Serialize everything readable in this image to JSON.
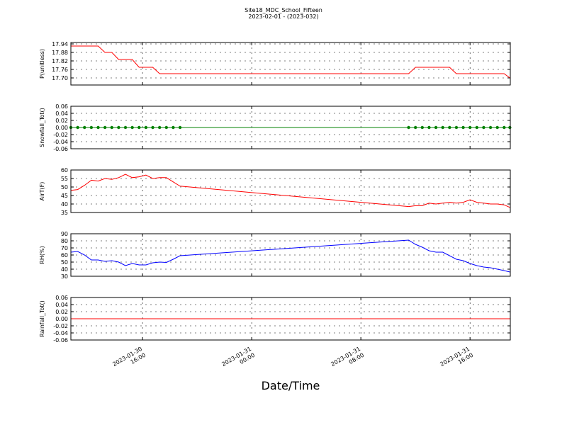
{
  "title": "Site18_MDC_School_Fifteen",
  "subtitle": "2023-02-01 - (2023-032)",
  "x_axis": {
    "label": "Date/Time",
    "xlim": [
      "2023-01-30 10:45",
      "2023-01-31 18:57"
    ],
    "xticks": [
      {
        "value": "2023-01-30 16:00",
        "label": "2023-01-30\n16:00"
      },
      {
        "value": "2023-01-31 00:00",
        "label": "2023-01-31\n00:00"
      },
      {
        "value": "2023-01-31 08:00",
        "label": "2023-01-31\n08:00"
      },
      {
        "value": "2023-01-31 16:00",
        "label": "2023-01-31\n16:00"
      }
    ],
    "x": [
      "2023-01-30 10:45",
      "2023-01-30 11:15",
      "2023-01-30 11:45",
      "2023-01-30 12:15",
      "2023-01-30 12:45",
      "2023-01-30 13:15",
      "2023-01-30 13:45",
      "2023-01-30 14:15",
      "2023-01-30 14:45",
      "2023-01-30 15:15",
      "2023-01-30 15:45",
      "2023-01-30 16:15",
      "2023-01-30 16:45",
      "2023-01-30 17:15",
      "2023-01-30 17:45",
      "2023-01-30 18:15",
      "2023-01-30 18:45",
      "2023-01-31 11:30",
      "2023-01-31 12:00",
      "2023-01-31 12:30",
      "2023-01-31 13:00",
      "2023-01-31 13:30",
      "2023-01-31 14:00",
      "2023-01-31 14:30",
      "2023-01-31 15:00",
      "2023-01-31 15:30",
      "2023-01-31 16:00",
      "2023-01-31 16:30",
      "2023-01-31 17:00",
      "2023-01-31 17:30",
      "2023-01-31 18:00",
      "2023-01-31 18:30",
      "2023-01-31 18:55"
    ]
  },
  "chart_data": [
    {
      "type": "line",
      "ylabel": "P(unitless)",
      "color": "#ff0000",
      "grid": true,
      "marker": false,
      "ylim": [
        17.65,
        17.95
      ],
      "yticks": [
        {
          "value": 17.7,
          "label": "17.70"
        },
        17.76,
        17.82,
        17.88,
        17.94
      ],
      "values": [
        17.925,
        17.925,
        17.925,
        17.925,
        17.925,
        17.88,
        17.88,
        17.83,
        17.83,
        17.83,
        17.775,
        17.775,
        17.775,
        17.73,
        17.73,
        17.73,
        17.73,
        17.73,
        17.775,
        17.775,
        17.775,
        17.775,
        17.775,
        17.775,
        17.73,
        17.73,
        17.73,
        17.73,
        17.73,
        17.73,
        17.73,
        17.73,
        17.7
      ]
    },
    {
      "type": "line",
      "ylabel": "Snowfall_Tot()",
      "color": "#008000",
      "grid": true,
      "marker": true,
      "ylim": [
        -0.06,
        0.06
      ],
      "yticks": [
        -0.06,
        -0.04,
        -0.02,
        {
          "value": 0,
          "label": "0.00"
        },
        0.02,
        0.04,
        0.06
      ],
      "values": [
        0,
        0,
        0,
        0,
        0,
        0,
        0,
        0,
        0,
        0,
        0,
        0,
        0,
        0,
        0,
        0,
        0,
        0,
        0,
        0,
        0,
        0,
        0,
        0,
        0,
        0,
        0,
        0,
        0,
        0,
        0,
        0,
        0
      ]
    },
    {
      "type": "line",
      "ylabel": "AirT(F)",
      "color": "#ff0000",
      "grid": true,
      "marker": false,
      "ylim": [
        35,
        60
      ],
      "yticks": [
        35,
        40,
        45,
        50,
        55,
        60
      ],
      "values": [
        48,
        48.5,
        51,
        54,
        53.5,
        55,
        54.5,
        55.5,
        57.5,
        55.5,
        56,
        57,
        55,
        55.5,
        55.5,
        53,
        50.5,
        38.5,
        39,
        39,
        40.5,
        40,
        40.5,
        41,
        40.5,
        41,
        42.5,
        41,
        40.5,
        40,
        40,
        39.5,
        38
      ]
    },
    {
      "type": "line",
      "ylabel": "RH(%)",
      "color": "#0000ff",
      "grid": true,
      "marker": false,
      "ylim": [
        30,
        90
      ],
      "yticks": [
        30,
        40,
        50,
        60,
        70,
        80,
        90
      ],
      "values": [
        64,
        65,
        60,
        53,
        53,
        51,
        52,
        50,
        45,
        48,
        46,
        46,
        49,
        50,
        49.5,
        54,
        59,
        81,
        75,
        71,
        66,
        64,
        64,
        59,
        54,
        52,
        48,
        45,
        43,
        42,
        40,
        38,
        36
      ]
    },
    {
      "type": "line",
      "ylabel": "Rainfall_Tot()",
      "color": "#ff0000",
      "grid": true,
      "marker": false,
      "ylim": [
        -0.06,
        0.06
      ],
      "yticks": [
        -0.06,
        -0.04,
        -0.02,
        {
          "value": 0,
          "label": "0.00"
        },
        0.02,
        0.04,
        0.06
      ],
      "values": [
        0,
        0,
        0,
        0,
        0,
        0,
        0,
        0,
        0,
        0,
        0,
        0,
        0,
        0,
        0,
        0,
        0,
        0,
        0,
        0,
        0,
        0,
        0,
        0,
        0,
        0,
        0,
        0,
        0,
        0,
        0,
        0,
        0
      ]
    }
  ]
}
